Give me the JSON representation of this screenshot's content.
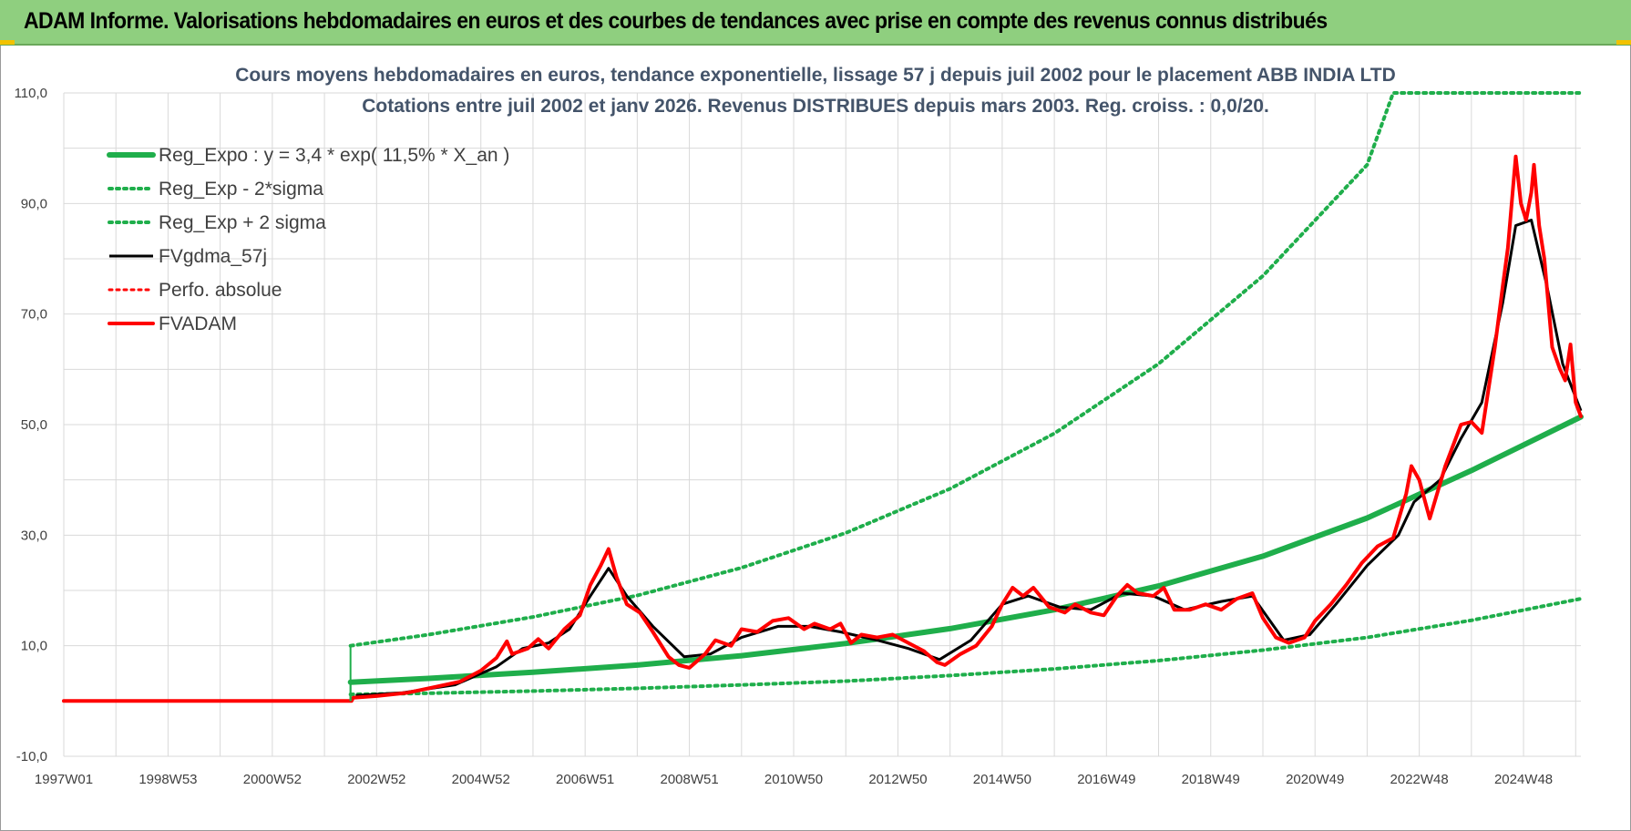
{
  "header": {
    "title": "ADAM Informe. Valorisations hebdomadaires en euros et des courbes de tendances avec prise en compte des revenus connus distribués"
  },
  "colors": {
    "header_bg": "#8fcf7f",
    "green": "#1fae4b",
    "red": "#ff0000",
    "black": "#000000",
    "grid": "#d9d9d9"
  },
  "chart_data": {
    "type": "line",
    "title": [
      "Cours moyens hebdomadaires en euros, tendance exponentielle, lissage 57 j depuis juil 2002 pour le placement ABB INDIA LTD",
      "Cotations entre juil 2002 et janv 2026. Revenus DISTRIBUES depuis mars 2003. Reg. croiss. : 0,0/20."
    ],
    "xlabel": "",
    "ylabel": "",
    "ylim": [
      -10,
      110
    ],
    "xlim": [
      1997.0,
      2026.1
    ],
    "yticks": [
      "-10,0",
      "10,0",
      "30,0",
      "50,0",
      "70,0",
      "90,0",
      "110,0"
    ],
    "ytick_values": [
      -10,
      10,
      30,
      50,
      70,
      90,
      110
    ],
    "xticks": [
      "1997W01",
      "1998W53",
      "2000W52",
      "2002W52",
      "2004W52",
      "2006W51",
      "2008W51",
      "2010W50",
      "2012W50",
      "2014W50",
      "2016W49",
      "2018W49",
      "2020W49",
      "2022W48",
      "2024W48"
    ],
    "xtick_values": [
      1997.0,
      1999.0,
      2001.0,
      2003.0,
      2005.0,
      2007.0,
      2009.0,
      2011.0,
      2013.0,
      2015.0,
      2017.0,
      2019.0,
      2021.0,
      2023.0,
      2025.0
    ],
    "series": [
      {
        "name": "Reg_Expo : y = 3,4 * exp( 11,5% *  X_an )",
        "style": "solid-thick",
        "color": "green",
        "points": [
          [
            2002.5,
            3.4
          ],
          [
            2004,
            4.1
          ],
          [
            2006,
            5.2
          ],
          [
            2008,
            6.5
          ],
          [
            2010,
            8.2
          ],
          [
            2012,
            10.4
          ],
          [
            2014,
            13.1
          ],
          [
            2016,
            16.5
          ],
          [
            2018,
            20.8
          ],
          [
            2020,
            26.2
          ],
          [
            2022,
            33.1
          ],
          [
            2024,
            41.7
          ],
          [
            2026.1,
            51.4
          ]
        ]
      },
      {
        "name": "Reg_Exp - 2*sigma",
        "style": "dotted",
        "color": "green",
        "points": [
          [
            2002.5,
            1.2
          ],
          [
            2004,
            1.4
          ],
          [
            2006,
            1.8
          ],
          [
            2008,
            2.3
          ],
          [
            2010,
            2.9
          ],
          [
            2012,
            3.6
          ],
          [
            2014,
            4.6
          ],
          [
            2016,
            5.8
          ],
          [
            2018,
            7.3
          ],
          [
            2020,
            9.2
          ],
          [
            2022,
            11.5
          ],
          [
            2024,
            14.6
          ],
          [
            2026.1,
            18.5
          ]
        ]
      },
      {
        "name": "Reg_Exp + 2 sigma",
        "style": "dotted",
        "color": "green",
        "points": [
          [
            2002.5,
            10.0
          ],
          [
            2004,
            12.0
          ],
          [
            2006,
            15.2
          ],
          [
            2008,
            19.1
          ],
          [
            2010,
            24.1
          ],
          [
            2012,
            30.4
          ],
          [
            2014,
            38.4
          ],
          [
            2016,
            48.4
          ],
          [
            2018,
            61.0
          ],
          [
            2020,
            76.9
          ],
          [
            2022,
            97.0
          ],
          [
            2022.5,
            110.0
          ],
          [
            2026.1,
            110.0
          ]
        ]
      },
      {
        "name": "FVgdma_57j",
        "style": "solid",
        "color": "black",
        "points": [
          [
            2002.6,
            1.0
          ],
          [
            2003.5,
            1.5
          ],
          [
            2004.5,
            2.9
          ],
          [
            2005.3,
            6.2
          ],
          [
            2005.8,
            9.5
          ],
          [
            2006.3,
            10.5
          ],
          [
            2006.7,
            13.0
          ],
          [
            2007.1,
            19.0
          ],
          [
            2007.45,
            24.0
          ],
          [
            2007.8,
            19.0
          ],
          [
            2008.3,
            13.5
          ],
          [
            2008.9,
            8.0
          ],
          [
            2009.4,
            8.5
          ],
          [
            2010.0,
            11.5
          ],
          [
            2010.7,
            13.5
          ],
          [
            2011.3,
            13.5
          ],
          [
            2011.9,
            12.5
          ],
          [
            2012.6,
            11.0
          ],
          [
            2013.2,
            9.5
          ],
          [
            2013.8,
            7.5
          ],
          [
            2014.4,
            11.0
          ],
          [
            2015.0,
            17.5
          ],
          [
            2015.5,
            19.0
          ],
          [
            2016.1,
            17.0
          ],
          [
            2016.7,
            16.5
          ],
          [
            2017.3,
            19.5
          ],
          [
            2017.9,
            19.0
          ],
          [
            2018.5,
            16.5
          ],
          [
            2019.2,
            18.0
          ],
          [
            2019.8,
            19.0
          ],
          [
            2020.4,
            11.0
          ],
          [
            2020.9,
            12.0
          ],
          [
            2021.4,
            17.5
          ],
          [
            2022.0,
            24.5
          ],
          [
            2022.6,
            30.0
          ],
          [
            2022.9,
            36.0
          ],
          [
            2023.4,
            40.0
          ],
          [
            2023.8,
            47.5
          ],
          [
            2024.2,
            54.0
          ],
          [
            2024.6,
            72.0
          ],
          [
            2024.85,
            86.0
          ],
          [
            2025.15,
            87.0
          ],
          [
            2025.45,
            75.0
          ],
          [
            2025.75,
            61.0
          ],
          [
            2026.1,
            52.5
          ]
        ]
      },
      {
        "name": "Perfo. absolue",
        "style": "dotted",
        "color": "red",
        "points": [
          [
            1997.0,
            0.0
          ],
          [
            2002.5,
            0.0
          ],
          [
            2002.6,
            0.8
          ],
          [
            2004.0,
            2.0
          ],
          [
            2006.0,
            10.0
          ],
          [
            2007.45,
            26.0
          ],
          [
            2009.0,
            6.0
          ],
          [
            2011.0,
            14.0
          ],
          [
            2013.5,
            6.5
          ],
          [
            2015.5,
            19.5
          ],
          [
            2017.5,
            20.5
          ],
          [
            2019.5,
            19.0
          ],
          [
            2020.5,
            10.5
          ],
          [
            2022.5,
            33.0
          ],
          [
            2024.0,
            50.0
          ],
          [
            2024.85,
            96.0
          ],
          [
            2025.5,
            62.0
          ],
          [
            2026.1,
            51.5
          ]
        ]
      },
      {
        "name": "FVADAM",
        "style": "solid-thick",
        "color": "red",
        "points": [
          [
            1997.0,
            0.0
          ],
          [
            2002.52,
            0.0
          ],
          [
            2002.55,
            0.6
          ],
          [
            2003.0,
            0.9
          ],
          [
            2003.6,
            1.5
          ],
          [
            2004.1,
            2.5
          ],
          [
            2004.6,
            3.5
          ],
          [
            2005.0,
            5.5
          ],
          [
            2005.3,
            7.8
          ],
          [
            2005.5,
            10.8
          ],
          [
            2005.6,
            8.5
          ],
          [
            2005.9,
            9.5
          ],
          [
            2006.1,
            11.2
          ],
          [
            2006.3,
            9.5
          ],
          [
            2006.6,
            13.0
          ],
          [
            2006.9,
            15.5
          ],
          [
            2007.1,
            21.0
          ],
          [
            2007.3,
            24.5
          ],
          [
            2007.45,
            27.5
          ],
          [
            2007.6,
            22.5
          ],
          [
            2007.8,
            17.5
          ],
          [
            2008.05,
            16.0
          ],
          [
            2008.3,
            12.5
          ],
          [
            2008.6,
            8.0
          ],
          [
            2008.8,
            6.5
          ],
          [
            2009.0,
            6.0
          ],
          [
            2009.3,
            8.5
          ],
          [
            2009.5,
            11.0
          ],
          [
            2009.8,
            10.0
          ],
          [
            2010.0,
            13.0
          ],
          [
            2010.3,
            12.5
          ],
          [
            2010.6,
            14.5
          ],
          [
            2010.9,
            15.0
          ],
          [
            2011.2,
            13.0
          ],
          [
            2011.4,
            14.0
          ],
          [
            2011.7,
            13.0
          ],
          [
            2011.9,
            14.0
          ],
          [
            2012.1,
            10.5
          ],
          [
            2012.3,
            12.0
          ],
          [
            2012.6,
            11.5
          ],
          [
            2012.9,
            12.0
          ],
          [
            2013.2,
            10.5
          ],
          [
            2013.5,
            9.0
          ],
          [
            2013.75,
            7.0
          ],
          [
            2013.9,
            6.5
          ],
          [
            2014.2,
            8.5
          ],
          [
            2014.5,
            10.0
          ],
          [
            2014.8,
            13.5
          ],
          [
            2015.0,
            17.5
          ],
          [
            2015.2,
            20.5
          ],
          [
            2015.4,
            19.0
          ],
          [
            2015.6,
            20.5
          ],
          [
            2015.9,
            17.0
          ],
          [
            2016.2,
            16.0
          ],
          [
            2016.4,
            17.5
          ],
          [
            2016.7,
            16.0
          ],
          [
            2016.95,
            15.5
          ],
          [
            2017.2,
            19.0
          ],
          [
            2017.4,
            21.0
          ],
          [
            2017.6,
            19.5
          ],
          [
            2017.9,
            19.0
          ],
          [
            2018.1,
            20.5
          ],
          [
            2018.3,
            16.5
          ],
          [
            2018.6,
            16.5
          ],
          [
            2018.9,
            17.5
          ],
          [
            2019.2,
            16.5
          ],
          [
            2019.5,
            18.5
          ],
          [
            2019.8,
            19.5
          ],
          [
            2020.0,
            15.0
          ],
          [
            2020.25,
            11.5
          ],
          [
            2020.5,
            10.5
          ],
          [
            2020.8,
            11.5
          ],
          [
            2021.0,
            14.5
          ],
          [
            2021.3,
            17.5
          ],
          [
            2021.6,
            21.0
          ],
          [
            2021.9,
            25.0
          ],
          [
            2022.2,
            28.0
          ],
          [
            2022.5,
            29.5
          ],
          [
            2022.75,
            37.5
          ],
          [
            2022.85,
            42.5
          ],
          [
            2023.0,
            40.0
          ],
          [
            2023.2,
            33.0
          ],
          [
            2023.5,
            42.5
          ],
          [
            2023.8,
            50.0
          ],
          [
            2024.0,
            50.5
          ],
          [
            2024.2,
            48.5
          ],
          [
            2024.45,
            64.0
          ],
          [
            2024.6,
            75.0
          ],
          [
            2024.7,
            82.0
          ],
          [
            2024.8,
            93.0
          ],
          [
            2024.85,
            98.5
          ],
          [
            2024.95,
            90.0
          ],
          [
            2025.05,
            87.0
          ],
          [
            2025.15,
            92.0
          ],
          [
            2025.2,
            97.0
          ],
          [
            2025.3,
            86.0
          ],
          [
            2025.4,
            80.0
          ],
          [
            2025.55,
            64.0
          ],
          [
            2025.7,
            60.0
          ],
          [
            2025.8,
            58.0
          ],
          [
            2025.9,
            64.5
          ],
          [
            2026.0,
            54.0
          ],
          [
            2026.1,
            51.5
          ]
        ]
      }
    ],
    "legend_position": "top-left"
  }
}
